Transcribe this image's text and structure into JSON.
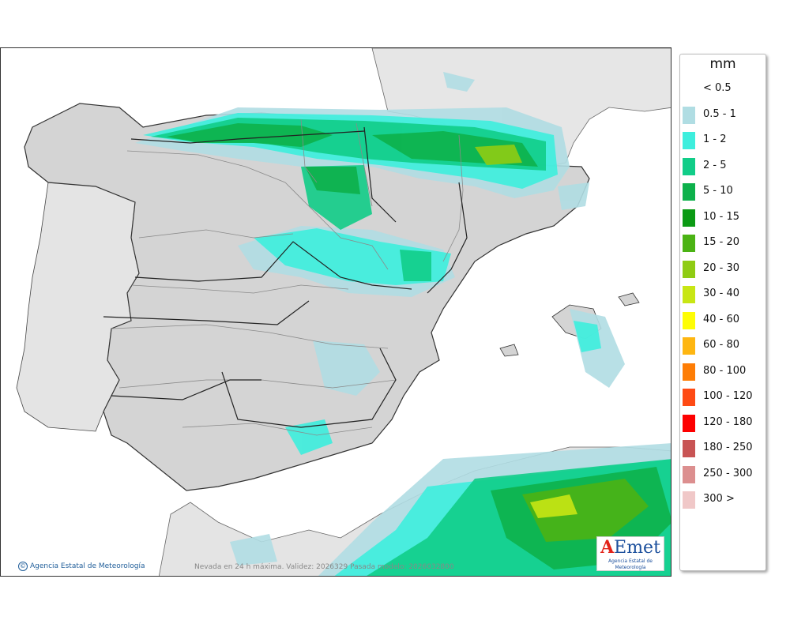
{
  "legend": {
    "unit": "mm",
    "items": [
      {
        "label": "< 0.5",
        "color": ""
      },
      {
        "label": "0.5 - 1",
        "color": "#b0dde3"
      },
      {
        "label": "1 - 2",
        "color": "#3deedd"
      },
      {
        "label": "2 - 5",
        "color": "#11cd88"
      },
      {
        "label": "5 - 10",
        "color": "#0db14b"
      },
      {
        "label": "10 - 15",
        "color": "#0b9a14"
      },
      {
        "label": "15 - 20",
        "color": "#4bb314"
      },
      {
        "label": "20 - 30",
        "color": "#8fcc13"
      },
      {
        "label": "30 - 40",
        "color": "#c8e614"
      },
      {
        "label": "40 - 60",
        "color": "#fefd05"
      },
      {
        "label": "60 - 80",
        "color": "#feb611"
      },
      {
        "label": "80 - 100",
        "color": "#fe7d05"
      },
      {
        "label": "100 - 120",
        "color": "#fe4a14"
      },
      {
        "label": "120 - 180",
        "color": "#fd0000"
      },
      {
        "label": "180 - 250",
        "color": "#c85454"
      },
      {
        "label": "250 - 300",
        "color": "#dc8f8f"
      },
      {
        "label": "300 >",
        "color": "#f0c8c8"
      }
    ]
  },
  "credit": "Agencia Estatal de Meteorología",
  "footer": "Nevada en 24 h máxima. Validez: 2026329 Pasada modelo: 2026032800",
  "logo": {
    "text": "AEmet",
    "subtitle": "Agencia Estatal de Meteorología"
  }
}
